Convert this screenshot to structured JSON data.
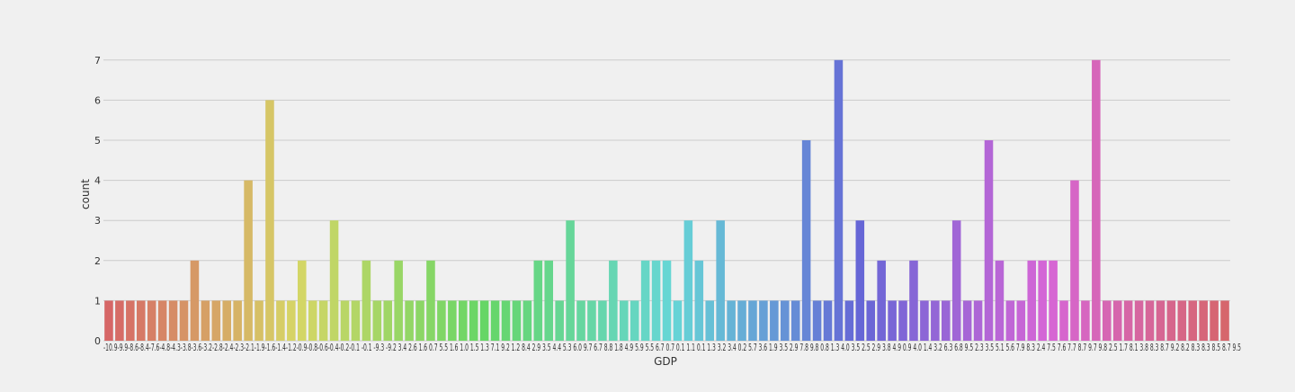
{
  "chart_data": {
    "type": "bar",
    "xlabel": "GDP",
    "ylabel": "count",
    "ylim": [
      0,
      7.5
    ],
    "yticks": [
      0,
      1,
      2,
      3,
      4,
      5,
      6,
      7
    ],
    "grid": true,
    "values": [
      1,
      1,
      1,
      1,
      1,
      1,
      1,
      1,
      2,
      1,
      1,
      1,
      1,
      4,
      1,
      6,
      1,
      1,
      2,
      1,
      1,
      3,
      1,
      1,
      2,
      1,
      1,
      2,
      1,
      1,
      2,
      1,
      1,
      1,
      1,
      1,
      1,
      1,
      1,
      1,
      2,
      2,
      1,
      3,
      1,
      1,
      1,
      2,
      1,
      1,
      2,
      2,
      2,
      1,
      3,
      2,
      1,
      3,
      1,
      1,
      1,
      1,
      1,
      1,
      1,
      5,
      1,
      1,
      7,
      1,
      3,
      1,
      2,
      1,
      1,
      2,
      1,
      1,
      1,
      3,
      1,
      1,
      5,
      2,
      1,
      1,
      2,
      2,
      2,
      1,
      4,
      1,
      7,
      1,
      1,
      1,
      1,
      1,
      1,
      1,
      1,
      1,
      1,
      1,
      1
    ],
    "categories_visible_text": "-10.9-9.9-8.6-8.4-7.6-4.8-4.3-3.8-3.6-3.2-2.8-2.4-2.3-2.1-1.9-1.6-1.4-1.2-0.9-0.8-0.6-0.4-0.2-0.1 -0.1 -9.3 -9.2 3.4 2.6 1.6 0.7 5.5 1.6 1.0 1.5 1.3 7.1 9.2 1.2 8.4 2.9 3.5 4.4 5.3 6.0 9.7 6.7 8.8 1.8 4.9 5.9 5.5 6.7 0.7 0.1 1.1 0.1 1.3 3.2 3.4 0.2 5.7 3.6 1.9 3.5 2.9 7.8 9.8 0.8 1.3 4.0 3.5 2.5 2.9 3.8 4.9 0.9 4.0 1.4 3.2 6.3 6.8 9.5 2.3 3.5 5.1 5.6 7.9 8.3 2.4 7.5 7.6 7.7 8.7 9.7 9.8 2.5 1.7 8.1 3.8 8.3 8.7 9.2 8.2 8.3 8.3 8.5 8.7 9.5"
  }
}
